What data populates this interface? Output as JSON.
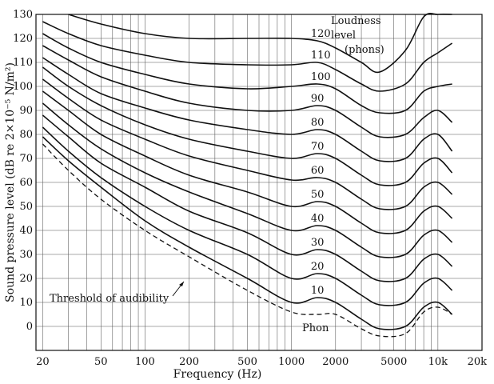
{
  "chart_data": {
    "type": "line",
    "title": "",
    "xlabel": "Frequency (Hz)",
    "ylabel": "Sound pressure level (dB re 2×10⁻⁵ N/m²)",
    "x_scale": "log",
    "xlim": [
      18,
      20000
    ],
    "ylim": [
      -10,
      130
    ],
    "grid": true,
    "x_tick_labels": [
      {
        "value": 20,
        "label": "20"
      },
      {
        "value": 50,
        "label": "50"
      },
      {
        "value": 100,
        "label": "100"
      },
      {
        "value": 200,
        "label": "200"
      },
      {
        "value": 500,
        "label": "500"
      },
      {
        "value": 1000,
        "label": "1000"
      },
      {
        "value": 2000,
        "label": "2000"
      },
      {
        "value": 5000,
        "label": "5000"
      },
      {
        "value": 10000,
        "label": "10k"
      },
      {
        "value": 20000,
        "label": "20k"
      }
    ],
    "y_ticks": [
      0,
      10,
      20,
      30,
      40,
      50,
      60,
      70,
      80,
      90,
      100,
      110,
      120,
      130
    ],
    "x": [
      20,
      30,
      50,
      100,
      200,
      500,
      1000,
      1500,
      2000,
      3000,
      4000,
      6000,
      8000,
      10000,
      12500
    ],
    "series": [
      {
        "name": "120",
        "values": [
          null,
          130,
          126,
          122,
          120,
          120,
          120,
          119,
          116,
          110,
          106,
          115,
          129,
          130,
          130
        ]
      },
      {
        "name": "110",
        "values": [
          127,
          122,
          117,
          113,
          110,
          109,
          109,
          110,
          107,
          101,
          98,
          101,
          110,
          114,
          118
        ]
      },
      {
        "name": "100",
        "values": [
          122,
          116,
          110,
          105,
          101,
          99,
          100,
          101,
          99,
          92,
          89,
          90,
          98,
          100,
          101
        ]
      },
      {
        "name": "90",
        "values": [
          117,
          111,
          104,
          98,
          93,
          90,
          90,
          92,
          90,
          83,
          79,
          80,
          87,
          90,
          85
        ]
      },
      {
        "name": "80",
        "values": [
          112,
          105,
          97,
          91,
          86,
          82,
          80,
          82,
          80,
          73,
          69,
          70,
          78,
          80,
          73
        ]
      },
      {
        "name": "70",
        "values": [
          108,
          100,
          92,
          84,
          78,
          73,
          70,
          72,
          70,
          63,
          59,
          60,
          68,
          70,
          64
        ]
      },
      {
        "name": "60",
        "values": [
          103,
          95,
          86,
          78,
          71,
          65,
          61,
          62,
          60,
          53,
          49,
          50,
          58,
          60,
          55
        ]
      },
      {
        "name": "50",
        "values": [
          98,
          90,
          80,
          71,
          63,
          56,
          50,
          52,
          50,
          43,
          39,
          40,
          48,
          50,
          45
        ]
      },
      {
        "name": "40",
        "values": [
          93,
          84,
          74,
          64,
          56,
          47,
          40,
          42,
          40,
          33,
          29,
          30,
          38,
          40,
          35
        ]
      },
      {
        "name": "30",
        "values": [
          88,
          79,
          68,
          58,
          48,
          39,
          30,
          32,
          30,
          23,
          19,
          20,
          28,
          30,
          25
        ]
      },
      {
        "name": "20",
        "values": [
          83,
          73,
          62,
          50,
          40,
          30,
          20,
          22,
          20,
          13,
          9,
          10,
          18,
          20,
          15
        ]
      },
      {
        "name": "10",
        "values": [
          79,
          69,
          58,
          44,
          33,
          20,
          10,
          12,
          10,
          3,
          -1,
          0,
          8,
          10,
          5
        ]
      }
    ],
    "threshold": {
      "x": [
        20,
        30,
        50,
        100,
        200,
        500,
        1000,
        1500,
        2000,
        3000,
        4000,
        6000,
        8000,
        10000,
        12500
      ],
      "values": [
        76,
        65,
        53,
        40,
        29,
        15,
        6,
        5,
        5,
        -1,
        -4,
        -3,
        6,
        8,
        5
      ]
    },
    "annotations": {
      "loudness_title_line1": "Loudness",
      "loudness_title_line2": "level",
      "loudness_title_line3": "(phons)",
      "threshold_label": "Threshold of audibility",
      "phon_label": "Phon"
    }
  }
}
